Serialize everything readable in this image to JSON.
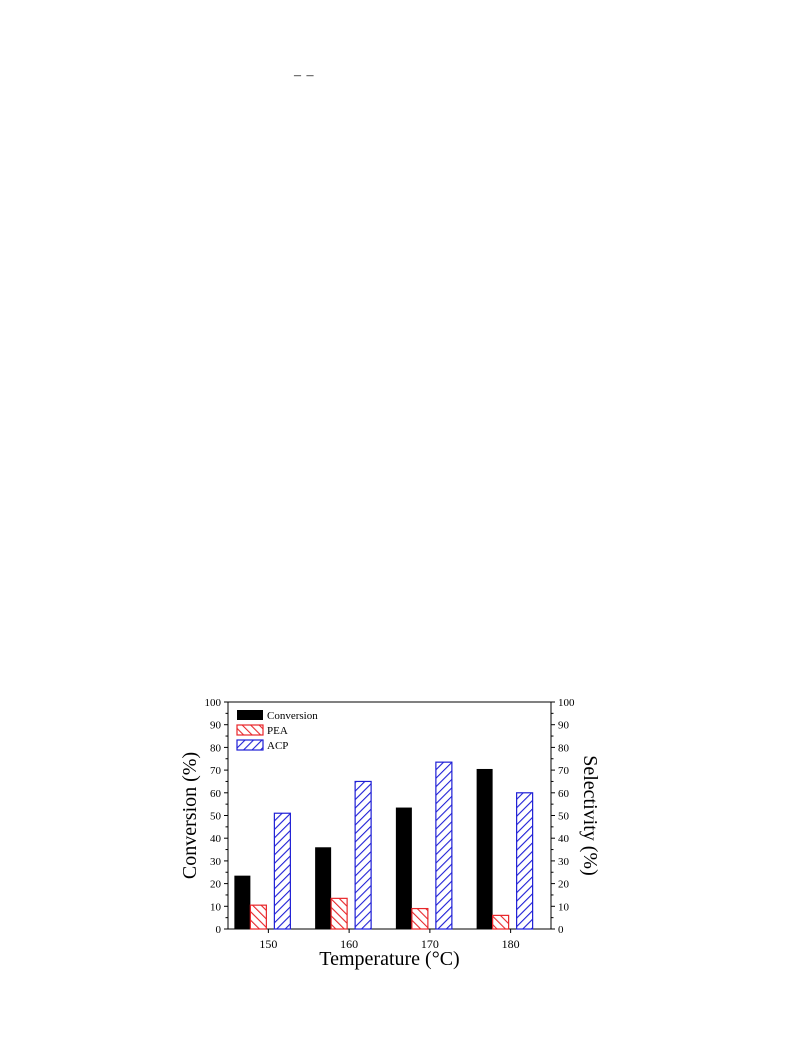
{
  "header_mark": "– –",
  "colors": {
    "conversion": "#000000",
    "pea": "#e8262a",
    "acp": "#1f1fd6",
    "axis": "#000000"
  },
  "chart_data": {
    "type": "bar",
    "title": "",
    "categories": [
      "150",
      "160",
      "170",
      "180"
    ],
    "xlabel": "Temperature (°C)",
    "ylabel": "Conversion (%)",
    "ylabel_right": "Selectivity (%)",
    "ylim": [
      0,
      100
    ],
    "ylim_right": [
      0,
      100
    ],
    "yticks": [
      "0",
      "10",
      "20",
      "30",
      "40",
      "50",
      "60",
      "70",
      "80",
      "90",
      "100"
    ],
    "grid": false,
    "legend_position": "top-left",
    "series": [
      {
        "name": "Conversion",
        "axis": "left",
        "pattern": "solid",
        "values": [
          23.5,
          36,
          53.5,
          70.5
        ]
      },
      {
        "name": "PEA",
        "axis": "right",
        "pattern": "hatch-forward",
        "values": [
          10.5,
          13.5,
          9,
          6
        ]
      },
      {
        "name": "ACP",
        "axis": "right",
        "pattern": "hatch-backward",
        "values": [
          51,
          65,
          73.5,
          60
        ]
      }
    ]
  }
}
